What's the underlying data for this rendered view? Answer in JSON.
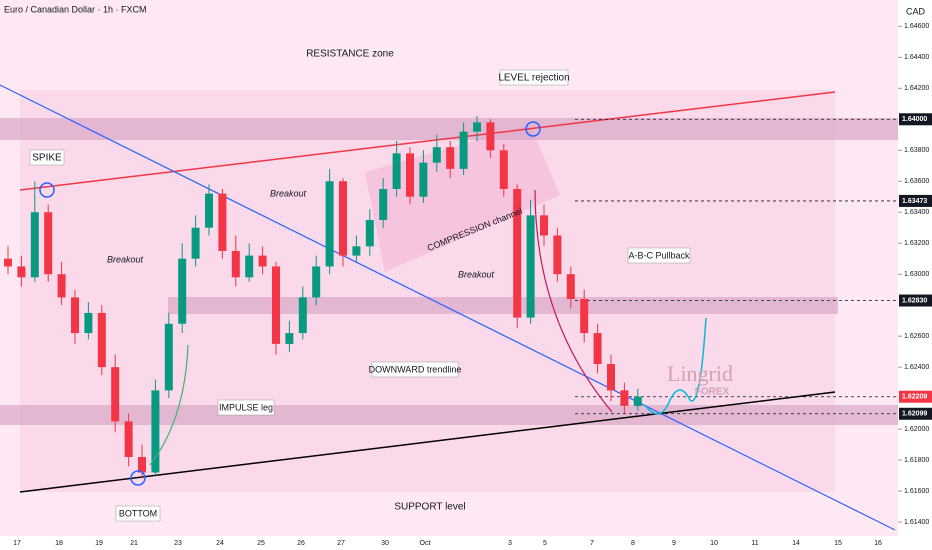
{
  "chart_data": {
    "type": "candlestick",
    "title": "Euro / Canadian Dollar · 1h · FXCM",
    "currency": "CAD",
    "dates": [
      "17",
      "18",
      "19",
      "21",
      "23",
      "24",
      "25",
      "26",
      "27",
      "30",
      "Oct",
      "3",
      "5",
      "7",
      "8",
      "9",
      "10",
      "11",
      "14",
      "15",
      "16"
    ],
    "open": [
      1.631,
      1.6305,
      1.6298,
      1.634,
      1.63,
      1.6285,
      1.6262,
      1.6275,
      1.624,
      1.6205,
      1.6182,
      1.6172,
      1.6225,
      1.6268,
      1.631,
      1.633,
      1.6352,
      1.6315,
      1.6298,
      1.6312,
      1.6305,
      1.6255,
      1.6262,
      1.6285,
      1.6305,
      1.636,
      1.6312,
      1.6318,
      1.6335,
      1.6355,
      1.6378,
      1.635,
      1.6372,
      1.6382,
      1.6368,
      1.6392,
      1.6398,
      1.638,
      1.6355,
      1.6272,
      1.6338,
      1.6325,
      1.63,
      1.6284,
      1.6262,
      1.6242,
      1.6225,
      1.6215
    ],
    "high": [
      1.6318,
      1.6312,
      1.636,
      1.6345,
      1.6308,
      1.629,
      1.6282,
      1.628,
      1.6248,
      1.621,
      1.619,
      1.6232,
      1.6275,
      1.632,
      1.6338,
      1.6358,
      1.6355,
      1.6325,
      1.632,
      1.6318,
      1.6308,
      1.627,
      1.6292,
      1.6312,
      1.6368,
      1.6362,
      1.6325,
      1.6342,
      1.6362,
      1.6386,
      1.6382,
      1.638,
      1.639,
      1.6386,
      1.6398,
      1.6402,
      1.64,
      1.6384,
      1.6358,
      1.6348,
      1.6345,
      1.633,
      1.6305,
      1.629,
      1.6268,
      1.6248,
      1.623,
      1.6226
    ],
    "low": [
      1.63,
      1.6292,
      1.6295,
      1.6295,
      1.628,
      1.6255,
      1.6258,
      1.6235,
      1.6198,
      1.6176,
      1.6168,
      1.617,
      1.622,
      1.6262,
      1.6305,
      1.6325,
      1.631,
      1.6292,
      1.6295,
      1.63,
      1.6248,
      1.625,
      1.6258,
      1.628,
      1.63,
      1.6305,
      1.6308,
      1.6312,
      1.633,
      1.635,
      1.6345,
      1.6346,
      1.6366,
      1.6362,
      1.6364,
      1.6386,
      1.6375,
      1.635,
      1.6265,
      1.6268,
      1.6318,
      1.6295,
      1.6278,
      1.6256,
      1.6236,
      1.6218,
      1.621,
      1.6212
    ],
    "close": [
      1.6305,
      1.6298,
      1.634,
      1.63,
      1.6285,
      1.6262,
      1.6275,
      1.624,
      1.6205,
      1.6182,
      1.6172,
      1.6225,
      1.6268,
      1.631,
      1.633,
      1.6352,
      1.6315,
      1.6298,
      1.6312,
      1.6305,
      1.6255,
      1.6262,
      1.6285,
      1.6305,
      1.636,
      1.6312,
      1.6318,
      1.6335,
      1.6355,
      1.6378,
      1.635,
      1.6372,
      1.6382,
      1.6368,
      1.6392,
      1.6398,
      1.638,
      1.6355,
      1.6272,
      1.6338,
      1.6325,
      1.63,
      1.6284,
      1.6262,
      1.6242,
      1.6225,
      1.6215,
      1.6221
    ],
    "up_color": "#089981",
    "down_color": "#f23645",
    "ylim": [
      1.6131,
      1.6477
    ],
    "yticks": [
      {
        "value": 1.646,
        "label": "1.64600"
      },
      {
        "value": 1.644,
        "label": "1.64400"
      },
      {
        "value": 1.642,
        "label": "1.64200"
      },
      {
        "value": 1.638,
        "label": "1.63800"
      },
      {
        "value": 1.636,
        "label": "1.63600"
      },
      {
        "value": 1.634,
        "label": "1.63400"
      },
      {
        "value": 1.632,
        "label": "1.63200"
      },
      {
        "value": 1.63,
        "label": "1.63000"
      },
      {
        "value": 1.626,
        "label": "1.62600"
      },
      {
        "value": 1.624,
        "label": "1.62400"
      },
      {
        "value": 1.62,
        "label": "1.62000"
      },
      {
        "value": 1.618,
        "label": "1.61800"
      },
      {
        "value": 1.616,
        "label": "1.61600"
      },
      {
        "value": 1.614,
        "label": "1.61400"
      }
    ],
    "price_levels": [
      {
        "value": 1.64,
        "label": "1.64000",
        "color": "#131722"
      },
      {
        "value": 1.63473,
        "label": "1.63473",
        "color": "#131722"
      },
      {
        "value": 1.6283,
        "label": "1.62830",
        "color": "#131722"
      },
      {
        "value": 1.62209,
        "label": "1.62209",
        "color": "#f23645"
      },
      {
        "value": 1.62099,
        "label": "1.62099",
        "color": "#131722"
      }
    ],
    "annotations": {
      "resistance": "RESISTANCE zone",
      "level_rejection": "LEVEL rejection",
      "spike": "SPIKE",
      "breakout": "Breakout",
      "compression": "COMPRESSION channel",
      "abc": "A-B-C Pullback",
      "downward": "DOWNWARD trendline",
      "impulse": "IMPULSE leg",
      "bottom": "BOTTOM",
      "support": "SUPPORT level",
      "brand": "Lingrid",
      "brand_sub": "FOREX"
    }
  }
}
